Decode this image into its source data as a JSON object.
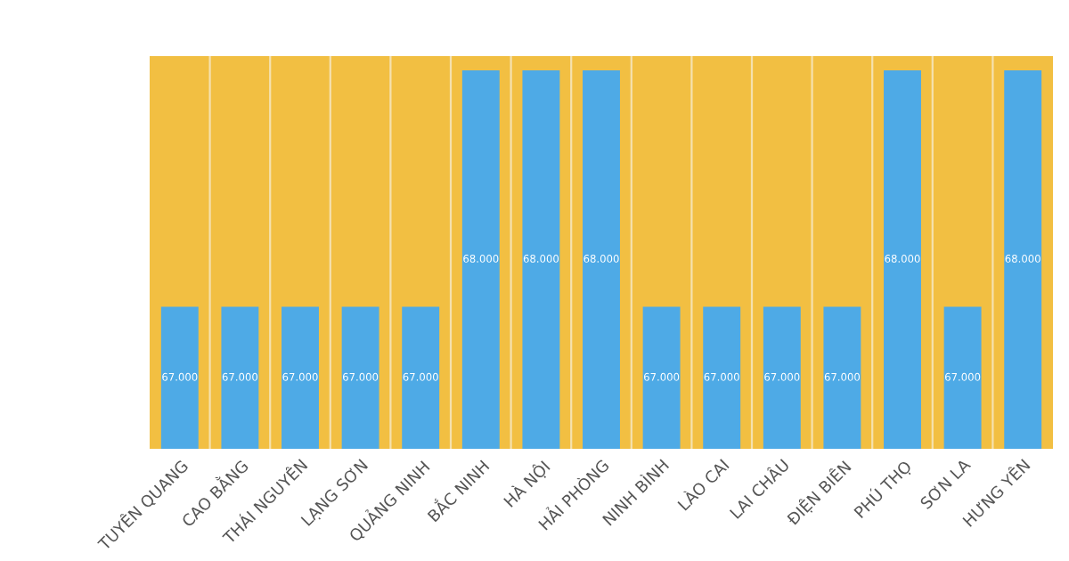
{
  "chart_data": {
    "type": "bar",
    "categories": [
      "TUYÊN QUANG",
      "CAO BẰNG",
      "THÁI NGUYÊN",
      "LẠNG SƠN",
      "QUẢNG NINH",
      "BẮC NINH",
      "HÀ NỘI",
      "HẢI PHÒNG",
      "NINH BÌNH",
      "LÀO CAI",
      "LAI CHÂU",
      "ĐIỆN BIÊN",
      "PHÚ THỌ",
      "SƠN LA",
      "HƯNG YÊN"
    ],
    "values": [
      67000,
      67000,
      67000,
      67000,
      67000,
      68000,
      68000,
      68000,
      67000,
      67000,
      67000,
      67000,
      68000,
      67000,
      68000
    ],
    "value_labels": [
      "67.000",
      "67.000",
      "67.000",
      "67.000",
      "67.000",
      "68.000",
      "68.000",
      "68.000",
      "67.000",
      "67.000",
      "67.000",
      "67.000",
      "68.000",
      "67.000",
      "68.000"
    ],
    "color": "#4eaae6",
    "ylim": [
      66400,
      68060
    ],
    "bands": [
      {
        "axis": "y",
        "from": 66400,
        "to": 68060,
        "color": "#f2bf42"
      }
    ],
    "tick_labels": "x"
  }
}
